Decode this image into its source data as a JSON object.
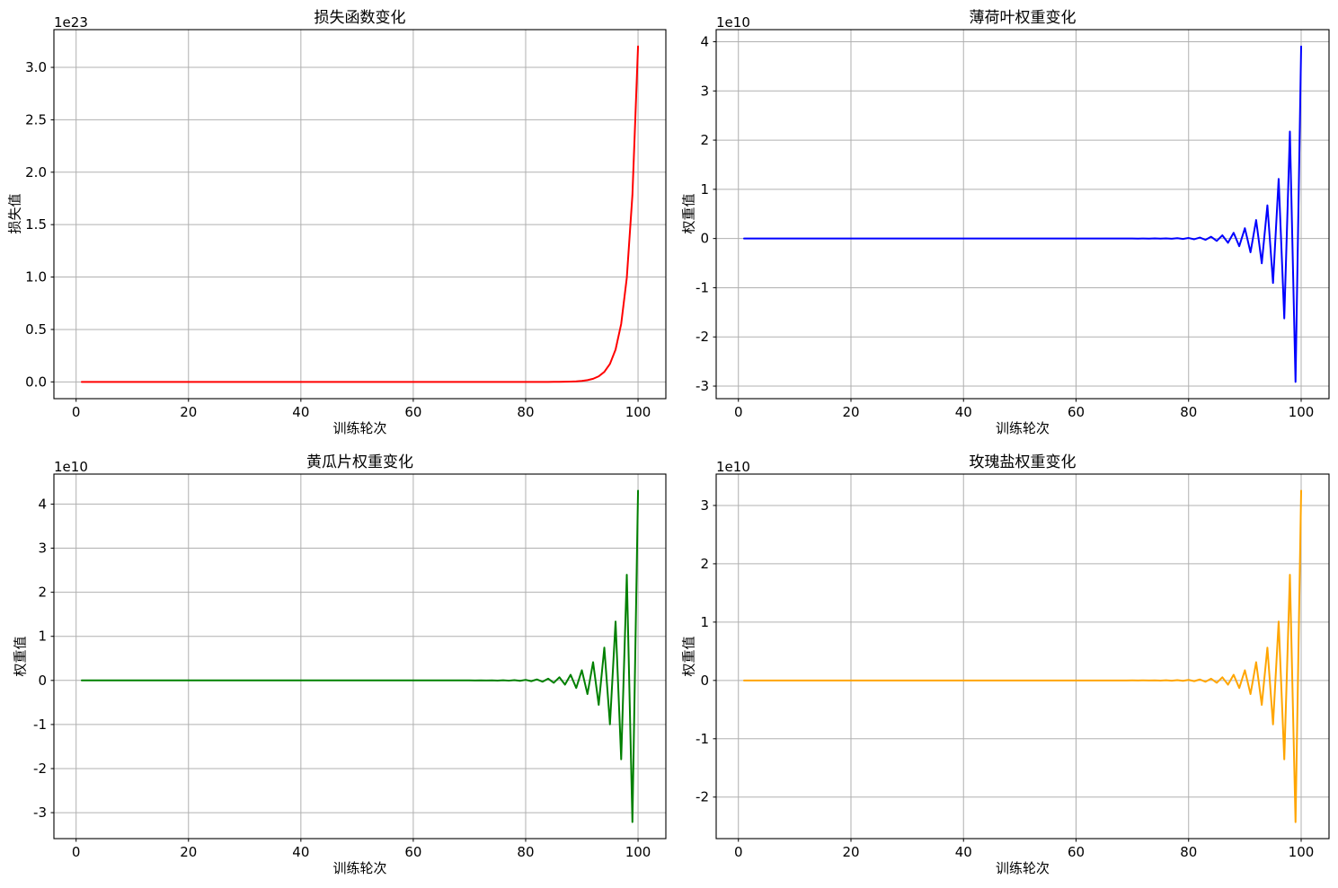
{
  "figure": {
    "background": "#ffffff",
    "grid_color": "#b0b0b0",
    "frame_color": "#000000"
  },
  "epochs": [
    1,
    2,
    3,
    4,
    5,
    6,
    7,
    8,
    9,
    10,
    11,
    12,
    13,
    14,
    15,
    16,
    17,
    18,
    19,
    20,
    21,
    22,
    23,
    24,
    25,
    26,
    27,
    28,
    29,
    30,
    31,
    32,
    33,
    34,
    35,
    36,
    37,
    38,
    39,
    40,
    41,
    42,
    43,
    44,
    45,
    46,
    47,
    48,
    49,
    50,
    51,
    52,
    53,
    54,
    55,
    56,
    57,
    58,
    59,
    60,
    61,
    62,
    63,
    64,
    65,
    66,
    67,
    68,
    69,
    70,
    71,
    72,
    73,
    74,
    75,
    76,
    77,
    78,
    79,
    80,
    81,
    82,
    83,
    84,
    85,
    86,
    87,
    88,
    89,
    90,
    91,
    92,
    93,
    94,
    95,
    96,
    97,
    98,
    99,
    100
  ],
  "chart_data": [
    {
      "type": "line",
      "title": "损失函数变化",
      "xlabel": "训练轮次",
      "ylabel": "损失值",
      "offset_text": "1e23",
      "unit_scale": "values are in units of 1e23",
      "color": "#ff0000",
      "grid": true,
      "legend": "none",
      "xlim": [
        -3.95,
        104.95
      ],
      "ylim": [
        -0.16,
        3.36
      ],
      "xticks": [
        0,
        20,
        40,
        60,
        80,
        100
      ],
      "yticks": [
        0.0,
        0.5,
        1.0,
        1.5,
        2.0,
        2.5,
        3.0
      ],
      "ytick_labels": [
        "0.0",
        "0.5",
        "1.0",
        "1.5",
        "2.0",
        "2.5",
        "3.0"
      ],
      "values": [
        0,
        0,
        0,
        0,
        0,
        0,
        0,
        0,
        0,
        0,
        0,
        0,
        0,
        0,
        0,
        0,
        0,
        0,
        0,
        0,
        0,
        0,
        0,
        0,
        0,
        0,
        0,
        0,
        0,
        0,
        0,
        0,
        0,
        0,
        0,
        0,
        0,
        0,
        0,
        0,
        0,
        0,
        0,
        0,
        0,
        0,
        0,
        0,
        0,
        0,
        0,
        0,
        0,
        0,
        0,
        0,
        0,
        0,
        0,
        0,
        0,
        0,
        0,
        0,
        0,
        0,
        0,
        0,
        0,
        0,
        0,
        0,
        0,
        0,
        0,
        0,
        0,
        0,
        0,
        0,
        0,
        0,
        0,
        0,
        0.0005,
        0.0009,
        0.0016,
        0.0029,
        0.0051,
        0.0092,
        0.0165,
        0.0296,
        0.0532,
        0.0955,
        0.1714,
        0.3078,
        0.5527,
        0.9925,
        1.7822,
        3.2
      ]
    },
    {
      "type": "line",
      "title": "薄荷叶权重变化",
      "xlabel": "训练轮次",
      "ylabel": "权重值",
      "offset_text": "1e10",
      "unit_scale": "values are in units of 1e10",
      "color": "#0000ff",
      "grid": true,
      "legend": "none",
      "xlim": [
        -3.95,
        104.95
      ],
      "ylim": [
        -3.255,
        4.246
      ],
      "xticks": [
        0,
        20,
        40,
        60,
        80,
        100
      ],
      "yticks": [
        -3,
        -2,
        -1,
        0,
        1,
        2,
        3,
        4
      ],
      "ytick_labels": [
        "-3",
        "-2",
        "-1",
        "0",
        "1",
        "2",
        "3",
        "4"
      ],
      "values": [
        0,
        0,
        0,
        0,
        0,
        0,
        0,
        0,
        0,
        0,
        0,
        0,
        0,
        0,
        0,
        0,
        0,
        0,
        0,
        0,
        0,
        0,
        0,
        0,
        0,
        0,
        0,
        0,
        0,
        0,
        0,
        0,
        0,
        0,
        0,
        0,
        0,
        0,
        0,
        0,
        0,
        0,
        0,
        0,
        0,
        0,
        0,
        0,
        0,
        0,
        0,
        0,
        0,
        0,
        0,
        0,
        0,
        0,
        0,
        0,
        0,
        0,
        0,
        0,
        0,
        0,
        0,
        0,
        0,
        0.0006,
        -0.0008,
        0.0011,
        -0.0014,
        0.0019,
        -0.0026,
        0.0035,
        -0.0047,
        0.0063,
        -0.0084,
        0.0112,
        -0.015,
        0.0201,
        -0.027,
        0.0361,
        -0.0484,
        0.0649,
        -0.0869,
        0.1165,
        -0.1561,
        0.2092,
        -0.2803,
        0.3756,
        -0.5033,
        0.6745,
        -0.9038,
        1.2111,
        -1.6229,
        2.1747,
        -2.9141,
        3.9049
      ]
    },
    {
      "type": "line",
      "title": "黄瓜片权重变化",
      "xlabel": "训练轮次",
      "ylabel": "权重值",
      "offset_text": "1e10",
      "unit_scale": "values are in units of 1e10",
      "color": "#008000",
      "grid": true,
      "legend": "none",
      "xlim": [
        -3.95,
        104.95
      ],
      "ylim": [
        -3.589,
        4.681
      ],
      "xticks": [
        0,
        20,
        40,
        60,
        80,
        100
      ],
      "yticks": [
        -3,
        -2,
        -1,
        0,
        1,
        2,
        3,
        4
      ],
      "ytick_labels": [
        "-3",
        "-2",
        "-1",
        "0",
        "1",
        "2",
        "3",
        "4"
      ],
      "values": [
        0,
        0,
        0,
        0,
        0,
        0,
        0,
        0,
        0,
        0,
        0,
        0,
        0,
        0,
        0,
        0,
        0,
        0,
        0,
        0,
        0,
        0,
        0,
        0,
        0,
        0,
        0,
        0,
        0,
        0,
        0,
        0,
        0,
        0,
        0,
        0,
        0,
        0,
        0,
        0,
        0,
        0,
        0,
        0,
        0,
        0,
        0,
        0,
        0,
        0,
        0,
        0,
        0,
        0,
        0,
        0,
        0,
        0,
        0,
        0,
        0,
        0,
        0,
        0,
        0,
        0,
        0,
        0,
        0,
        0.0007,
        -0.0009,
        0.0012,
        -0.0016,
        0.0021,
        -0.0029,
        0.0039,
        -0.0052,
        0.0069,
        -0.0092,
        0.0124,
        -0.0166,
        0.0222,
        -0.0297,
        0.0398,
        -0.0534,
        0.0715,
        -0.0958,
        0.1284,
        -0.1721,
        0.2306,
        -0.309,
        0.4141,
        -0.5549,
        0.7436,
        -0.9965,
        1.3353,
        -1.7893,
        2.3977,
        -3.2129,
        4.3053
      ]
    },
    {
      "type": "line",
      "title": "玫瑰盐权重变化",
      "xlabel": "训练轮次",
      "ylabel": "权重值",
      "offset_text": "1e10",
      "unit_scale": "values are in units of 1e10",
      "color": "#ffa500",
      "grid": true,
      "legend": "none",
      "xlim": [
        -3.95,
        104.95
      ],
      "ylim": [
        -2.712,
        3.538
      ],
      "xticks": [
        0,
        20,
        40,
        60,
        80,
        100
      ],
      "yticks": [
        -2,
        -1,
        0,
        1,
        2,
        3
      ],
      "ytick_labels": [
        "-2",
        "-1",
        "0",
        "1",
        "2",
        "3"
      ],
      "values": [
        0,
        0,
        0,
        0,
        0,
        0,
        0,
        0,
        0,
        0,
        0,
        0,
        0,
        0,
        0,
        0,
        0,
        0,
        0,
        0,
        0,
        0,
        0,
        0,
        0,
        0,
        0,
        0,
        0,
        0,
        0,
        0,
        0,
        0,
        0,
        0,
        0,
        0,
        0,
        0,
        0,
        0,
        0,
        0,
        0,
        0,
        0,
        0,
        0,
        0,
        0,
        0,
        0,
        0,
        0,
        0,
        0,
        0,
        0,
        0,
        0,
        0,
        0,
        0,
        0,
        0,
        0,
        0,
        0,
        0.0005,
        -0.0007,
        0.0009,
        -0.0012,
        0.0016,
        -0.0022,
        0.0029,
        -0.0039,
        0.0052,
        -0.007,
        0.0093,
        -0.0125,
        0.0168,
        -0.0225,
        0.0301,
        -0.0403,
        0.0541,
        -0.0724,
        0.0971,
        -0.1301,
        0.1743,
        -0.2336,
        0.313,
        -0.4194,
        0.5621,
        -0.7532,
        1.0092,
        -1.3524,
        1.8122,
        -2.4284,
        3.2541
      ]
    }
  ]
}
